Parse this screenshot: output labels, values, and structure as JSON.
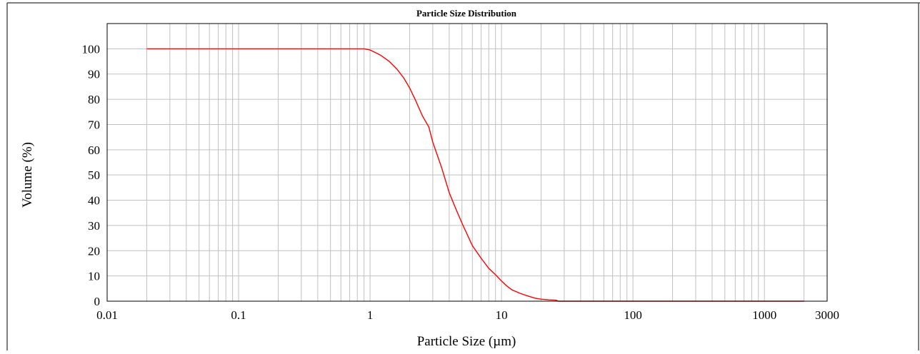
{
  "chart_data": {
    "type": "line",
    "title": "Particle Size Distribution",
    "xlabel": "Particle Size (µm)",
    "ylabel": "Volume (%)",
    "x_scale": "log",
    "xlim": [
      0.01,
      3000
    ],
    "ylim": [
      0,
      110
    ],
    "x_ticks": [
      0.01,
      0.1,
      1,
      10,
      100,
      1000,
      3000
    ],
    "x_tick_labels": [
      "0.01",
      "0.1",
      "1",
      "10",
      "100",
      "1000",
      "3000"
    ],
    "y_ticks": [
      0,
      10,
      20,
      30,
      40,
      50,
      60,
      70,
      80,
      90,
      100
    ],
    "y_tick_labels": [
      "0",
      "10",
      "20",
      "30",
      "40",
      "50",
      "60",
      "70",
      "80",
      "90",
      "100"
    ],
    "grid": true,
    "line_color": "#ff0000",
    "grid_color": "#c0c0c0",
    "series": [
      {
        "x": [
          0.02,
          0.1,
          0.5,
          0.9,
          1.0,
          1.1,
          1.2,
          1.4,
          1.6,
          1.8,
          2.0,
          2.2,
          2.5,
          2.8,
          3.0,
          3.5,
          4.0,
          4.5,
          5.0,
          6.0,
          7.0,
          8.0,
          9.0,
          10.0,
          11.0,
          12.0,
          14.0,
          16.0,
          18.0,
          20.0,
          23.0,
          26.0,
          27.0,
          30.0,
          100.0,
          1000.0,
          2000.0
        ],
        "y": [
          100,
          100,
          100,
          100,
          99.5,
          98.5,
          97.5,
          95,
          92,
          88.5,
          84.5,
          80,
          73.5,
          69,
          63,
          53,
          43,
          36.5,
          31,
          22,
          17,
          13,
          10.5,
          8,
          6,
          4.5,
          3,
          2,
          1.2,
          0.8,
          0.5,
          0.4,
          0,
          0,
          0,
          0,
          0
        ]
      }
    ]
  }
}
